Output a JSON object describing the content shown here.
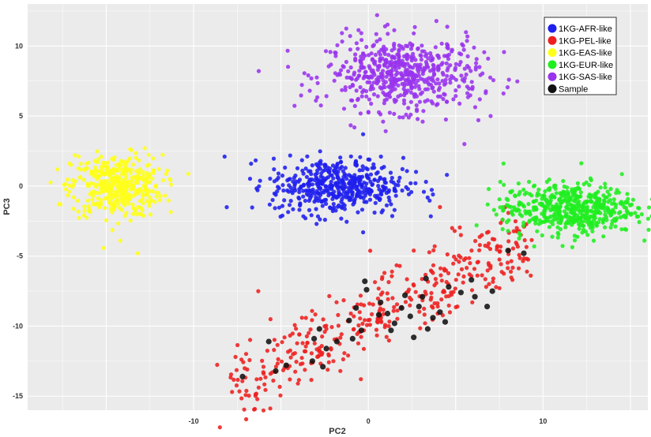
{
  "chart_data": {
    "type": "scatter",
    "title": "",
    "xlabel": "PC2",
    "ylabel": "PC3",
    "xlim": [
      -19.5,
      16
    ],
    "ylim": [
      -16,
      13
    ],
    "xticks": [
      -10,
      0,
      10
    ],
    "yticks": [
      -15,
      -10,
      -5,
      0,
      5,
      10
    ],
    "xtick_labels": [
      "-10",
      "0",
      "10"
    ],
    "ytick_labels": [
      "-15",
      "-10",
      "-5",
      "0",
      "5",
      "10"
    ],
    "grid": true,
    "background": "#ebebeb",
    "legend_position": "top-right",
    "series": [
      {
        "name": "1KG-AFR-like",
        "color": "#1f1fee",
        "center": [
          -1.8,
          0.0
        ],
        "spread": [
          1.9,
          1.0
        ],
        "count": 480,
        "points": [
          [
            -5.4,
            1.2
          ],
          [
            -3.6,
            -2.3
          ],
          [
            0.0,
            1.9
          ],
          [
            2.7,
            0.2
          ],
          [
            3.7,
            -0.6
          ],
          [
            1.3,
            -1.3
          ],
          [
            -0.3,
            3.7
          ],
          [
            -0.3,
            -3.3
          ],
          [
            4.5,
            0.8
          ],
          [
            3.3,
            0.3
          ]
        ]
      },
      {
        "name": "1KG-PEL-like",
        "color": "#ee1f1f",
        "points": [
          [
            -7.8,
            -14.7
          ],
          [
            -7.6,
            -12.2
          ],
          [
            -6.3,
            -7.5
          ],
          [
            -5.6,
            -9.5
          ],
          [
            -5.4,
            -11.7
          ],
          [
            -5.6,
            -13.4
          ],
          [
            -4.8,
            -10.8
          ],
          [
            -3.8,
            -9.4
          ],
          [
            -3.6,
            -11.8
          ],
          [
            -2.4,
            -10.2
          ],
          [
            -2.0,
            -12.5
          ],
          [
            -1.0,
            -9.1
          ],
          [
            0.8,
            -6.5
          ],
          [
            1.8,
            -5.7
          ],
          [
            2.6,
            -4.6
          ],
          [
            3.8,
            -4.3
          ],
          [
            4.8,
            -3.0
          ],
          [
            4.1,
            -1.5
          ],
          [
            5.3,
            -3.5
          ],
          [
            7.0,
            -5.7
          ],
          [
            8.5,
            -3.0
          ],
          [
            -1.6,
            -13.2
          ],
          [
            3.7,
            -6.2
          ]
        ]
      },
      {
        "name": "1KG-EAS-like",
        "color": "#ffff1a",
        "center": [
          -14.4,
          0.0
        ],
        "spread": [
          1.3,
          1.1
        ],
        "count": 420,
        "points": [
          [
            -17.7,
            -1.3
          ],
          [
            -12.8,
            2.7
          ],
          [
            -13.2,
            -4.8
          ],
          [
            -16.8,
            2.2
          ],
          [
            -12.3,
            1.1
          ],
          [
            -14.2,
            -3.9
          ]
        ]
      },
      {
        "name": "1KG-EUR-like",
        "color": "#1fee1f",
        "center": [
          11.5,
          -1.6
        ],
        "spread": [
          1.9,
          0.9
        ],
        "count": 520,
        "points": [
          [
            14.7,
            -1.2
          ],
          [
            8.7,
            -3.5
          ],
          [
            13.7,
            -0.4
          ],
          [
            9.2,
            0.3
          ],
          [
            12.9,
            -3.9
          ],
          [
            8.0,
            -1.4
          ]
        ]
      },
      {
        "name": "1KG-SAS-like",
        "color": "#9933ee",
        "center": [
          2.0,
          8.0
        ],
        "spread": [
          2.2,
          1.3
        ],
        "count": 560,
        "points": [
          [
            0.5,
            12.2
          ],
          [
            -3.0,
            6.1
          ],
          [
            5.5,
            3.0
          ],
          [
            6.3,
            4.7
          ],
          [
            7.0,
            5.0
          ],
          [
            -1.4,
            8.5
          ],
          [
            2.6,
            10.9
          ]
        ]
      },
      {
        "name": "Sample",
        "color": "#111111",
        "points": [
          [
            -7.2,
            -13.6
          ],
          [
            -5.7,
            -11.1
          ],
          [
            -5.3,
            -13.2
          ],
          [
            -4.7,
            -12.8
          ],
          [
            -3.1,
            -10.9
          ],
          [
            -3.2,
            -12.5
          ],
          [
            -2.4,
            -11.6
          ],
          [
            -2.6,
            -12.9
          ],
          [
            -1.8,
            -11.1
          ],
          [
            -1.1,
            -9.6
          ],
          [
            -0.9,
            -10.9
          ],
          [
            -0.7,
            -8.7
          ],
          [
            -0.4,
            -10.3
          ],
          [
            -0.1,
            -7.4
          ],
          [
            -0.2,
            -6.8
          ],
          [
            0.6,
            -9.2
          ],
          [
            0.7,
            -8.3
          ],
          [
            1.3,
            -10.3
          ],
          [
            1.5,
            -9.8
          ],
          [
            1.9,
            -8.7
          ],
          [
            2.1,
            -7.8
          ],
          [
            2.4,
            -9.3
          ],
          [
            2.6,
            -10.8
          ],
          [
            2.9,
            -8.6
          ],
          [
            3.1,
            -7.9
          ],
          [
            3.4,
            -10.2
          ],
          [
            3.7,
            -9.4
          ],
          [
            4.1,
            -9.0
          ],
          [
            4.4,
            -9.7
          ],
          [
            4.6,
            -7.2
          ],
          [
            5.3,
            -7.6
          ],
          [
            5.9,
            -6.7
          ],
          [
            6.1,
            -7.9
          ],
          [
            6.8,
            -8.6
          ],
          [
            7.1,
            -7.5
          ],
          [
            8.0,
            -4.6
          ],
          [
            8.9,
            -4.8
          ],
          [
            -2.8,
            -10.2
          ],
          [
            1.1,
            -9.1
          ],
          [
            3.3,
            -6.6
          ]
        ]
      }
    ]
  }
}
